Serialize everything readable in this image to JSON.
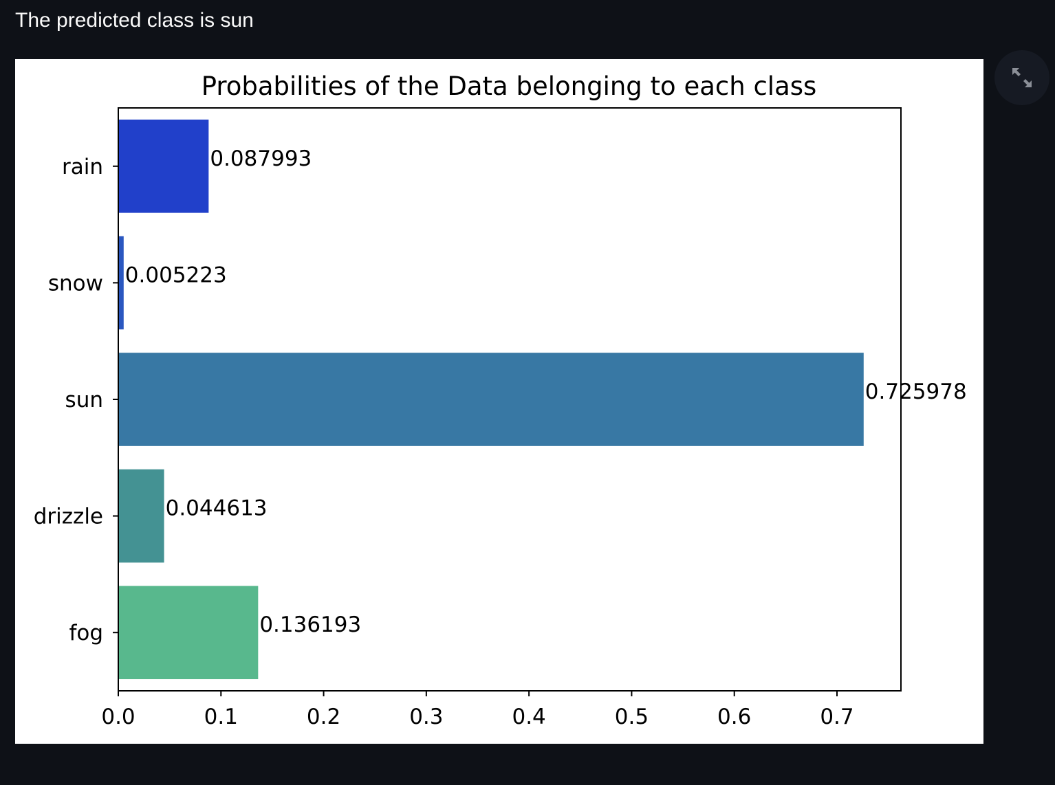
{
  "prediction": {
    "text": "The predicted class is sun"
  },
  "toolbar": {
    "fullscreen_icon": "expand-arrows-icon"
  },
  "colors": {
    "page_background": "#0e1117",
    "text": "#fafafa",
    "card_background": "#ffffff",
    "fullscreen_button_bg": "#161a23",
    "icon_color": "#8b8f97"
  },
  "chart_data": {
    "type": "bar",
    "orientation": "horizontal",
    "title": "Probabilities of the Data belonging to each class",
    "xlabel": "",
    "ylabel": "",
    "categories": [
      "rain",
      "snow",
      "sun",
      "drizzle",
      "fog"
    ],
    "values": [
      0.087993,
      0.005223,
      0.725978,
      0.044613,
      0.136193
    ],
    "value_labels": [
      "0.087993",
      "0.005223",
      "0.725978",
      "0.044613",
      "0.136193"
    ],
    "bar_colors": [
      "#2140ca",
      "#2a57c0",
      "#3878a4",
      "#449293",
      "#58b88d"
    ],
    "xlim": [
      0,
      0.7623
    ],
    "xticks": [
      0.0,
      0.1,
      0.2,
      0.3,
      0.4,
      0.5,
      0.6,
      0.7
    ],
    "xtick_labels": [
      "0.0",
      "0.1",
      "0.2",
      "0.3",
      "0.4",
      "0.5",
      "0.6",
      "0.7"
    ],
    "grid": false,
    "legend": "none"
  }
}
